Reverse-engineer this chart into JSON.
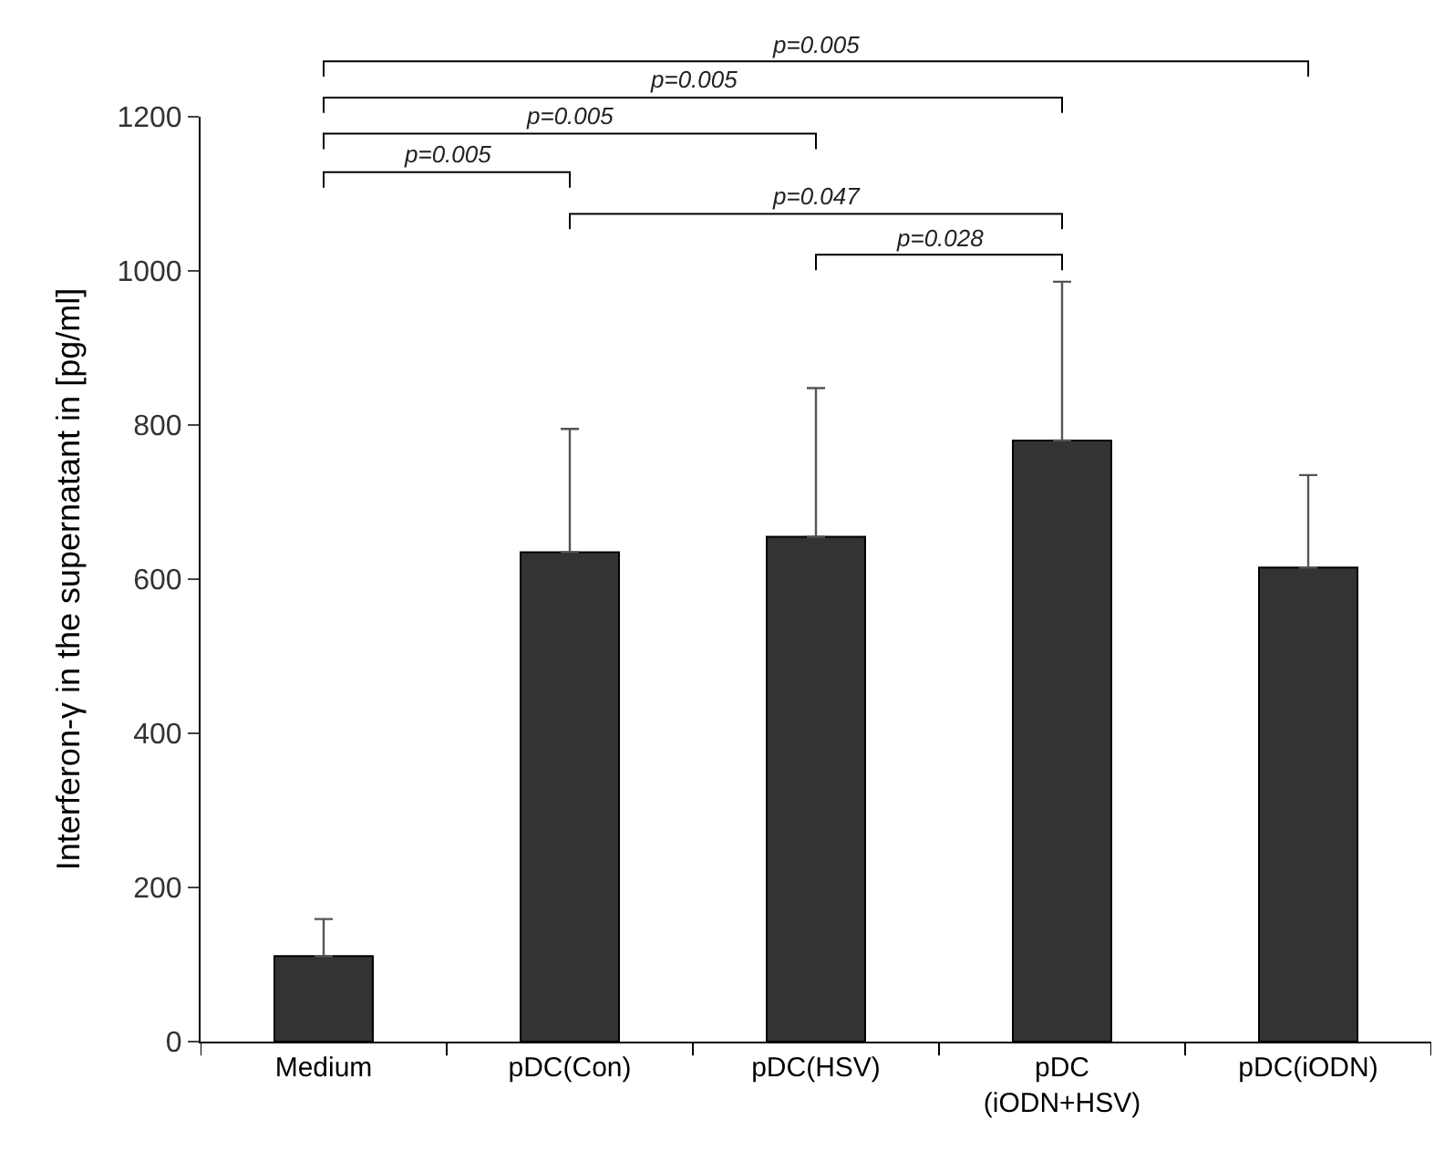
{
  "chart_data": {
    "type": "bar",
    "ylabel": "Interferon-γ in the supernatant in [pg/ml]",
    "categories": [
      "Medium",
      "pDC(Con)",
      "pDC(HSV)",
      "pDC\n(iODN+HSV)",
      "pDC(iODN)"
    ],
    "values": [
      111,
      635,
      655,
      780,
      615
    ],
    "errors": [
      [
        111,
        159
      ],
      [
        635,
        795
      ],
      [
        655,
        848
      ],
      [
        780,
        986
      ],
      [
        615,
        735
      ]
    ],
    "color": "#333333",
    "ylim": [
      0,
      1200
    ],
    "yticks": [
      0,
      200,
      400,
      600,
      800,
      1000,
      1200
    ],
    "annotations": [
      "p=0.005",
      "p=0.005",
      "p=0.005",
      "p=0.005",
      "p=0.047",
      "p=0.028"
    ]
  }
}
